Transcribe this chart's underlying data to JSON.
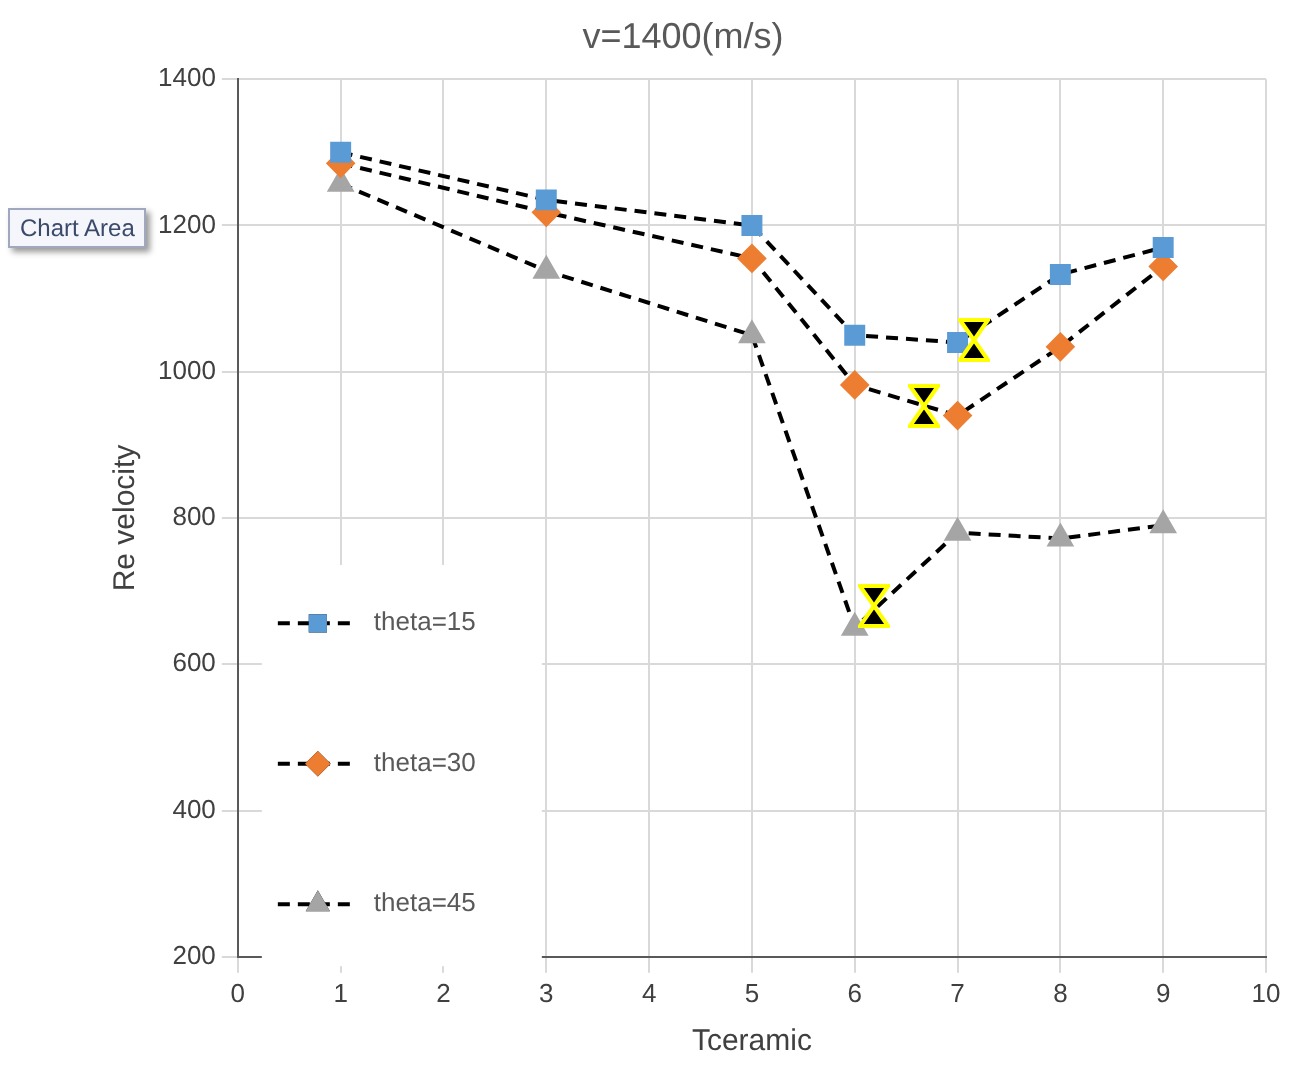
{
  "chart_data": {
    "type": "line",
    "title": "v=1400(m/s)",
    "xlabel": "Tceramic",
    "ylabel": "Re velocity",
    "x": [
      1,
      3,
      5,
      6,
      7,
      8,
      9
    ],
    "series": [
      {
        "name": "theta=15",
        "color": "#5b9bd5",
        "marker": "square",
        "line_style": "dashed",
        "values": [
          1300,
          1235,
          1200,
          1050,
          1040,
          1133,
          1170
        ]
      },
      {
        "name": "theta=30",
        "color": "#ed7d31",
        "marker": "diamond",
        "line_style": "dashed",
        "values": [
          1285,
          1218,
          1155,
          982,
          940,
          1034,
          1144
        ]
      },
      {
        "name": "theta=45",
        "color": "#a5a5a5",
        "marker": "triangle",
        "line_style": "dashed",
        "values": [
          1257,
          1138,
          1050,
          650,
          780,
          772,
          790
        ]
      }
    ],
    "xlim": [
      0,
      10
    ],
    "xticks": [
      0,
      1,
      2,
      3,
      4,
      5,
      6,
      7,
      8,
      9,
      10
    ],
    "ylim": [
      200,
      1400
    ],
    "yticks": [
      200,
      400,
      600,
      800,
      1000,
      1200,
      1400
    ],
    "grid": true,
    "legend": "left",
    "annotations": [
      "Chart Area"
    ]
  }
}
